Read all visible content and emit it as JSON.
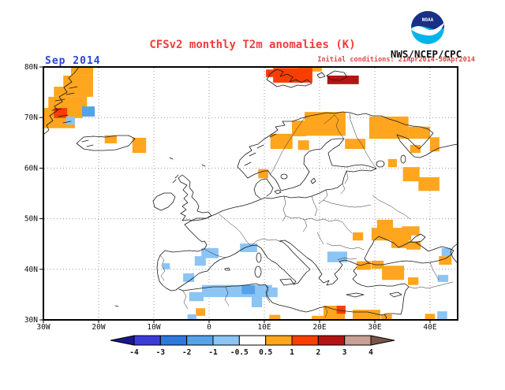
{
  "header": {
    "date_label": "Sep 2014",
    "title": "CFSv2 monthly T2m anomalies (K)",
    "init_conditions": "Initial conditions: 21Apr2014-30Apr2014",
    "agency": "NWS/NCEP/CPC",
    "logo_text": "NOAA"
  },
  "map": {
    "extent": {
      "lon_min": -30,
      "lon_max": 45,
      "lat_min": 30,
      "lat_max": 80
    },
    "lon_ticks": [
      {
        "label": "30W",
        "value": -30
      },
      {
        "label": "20W",
        "value": -20
      },
      {
        "label": "10W",
        "value": -10
      },
      {
        "label": "0",
        "value": 0
      },
      {
        "label": "10E",
        "value": 10
      },
      {
        "label": "20E",
        "value": 20
      },
      {
        "label": "30E",
        "value": 30
      },
      {
        "label": "40E",
        "value": 40
      }
    ],
    "lat_ticks": [
      {
        "label": "80N",
        "value": 80
      },
      {
        "label": "70N",
        "value": 70
      },
      {
        "label": "60N",
        "value": 60
      },
      {
        "label": "50N",
        "value": 50
      },
      {
        "label": "40N",
        "value": 40
      },
      {
        "label": "30N",
        "value": 30
      }
    ],
    "grid_lons": [
      -20,
      -10,
      0,
      10,
      20,
      30,
      40
    ],
    "grid_lats": [
      70,
      60,
      50,
      40
    ]
  },
  "legend_classes": {
    "m2": {
      "color": "#55a2e8",
      "range_k": "-2 to -1"
    },
    "m1": {
      "color": "#8cc4f4",
      "range_k": "-1 to -0.5"
    },
    "p1": {
      "color": "#ffa51e",
      "range_k": "0.5 to 1"
    },
    "p2": {
      "color": "#f83e00",
      "range_k": "1 to 2"
    },
    "p3": {
      "color": "#b41414",
      "range_k": "2 to 3"
    }
  },
  "colorbar": {
    "tick_labels": [
      "-4",
      "-3",
      "-2",
      "-1",
      "-0.5",
      "0.5",
      "1",
      "2",
      "3",
      "4"
    ],
    "segment_colors": [
      "#3c3cd8",
      "#2f78dc",
      "#55a2e8",
      "#8cc4f4",
      "#ffffff",
      "#ffa51e",
      "#f83e00",
      "#b41414",
      "#c8a096"
    ],
    "arrow_left_color": "#18188c",
    "arrow_right_color": "#7a5448"
  },
  "chart_data": {
    "type": "heatmap",
    "title": "CFSv2 monthly T2m anomalies (K)",
    "units": "K",
    "cells_format": [
      "lon_west",
      "lat_south",
      "lon_east",
      "lat_north",
      "anomaly_class"
    ],
    "cells": [
      [
        -25.0,
        78.3,
        -21.0,
        80.0,
        "p1"
      ],
      [
        -26.4,
        76.1,
        -21.0,
        78.3,
        "p1"
      ],
      [
        -28.1,
        74.1,
        -21.0,
        76.1,
        "p1"
      ],
      [
        -29.1,
        71.9,
        -22.1,
        74.1,
        "p1"
      ],
      [
        -30.0,
        69.9,
        -22.9,
        71.9,
        "p1"
      ],
      [
        -30.0,
        67.9,
        -24.3,
        69.9,
        "p1"
      ],
      [
        -28.1,
        69.9,
        -25.7,
        71.9,
        "p2"
      ],
      [
        -23.0,
        70.2,
        -20.7,
        72.2,
        "m2"
      ],
      [
        -25.9,
        68.6,
        -24.3,
        70.2,
        "m1"
      ],
      [
        -18.9,
        64.9,
        -16.7,
        66.5,
        "p1"
      ],
      [
        -13.9,
        63.0,
        -11.4,
        66.0,
        "p1"
      ],
      [
        16.1,
        79.1,
        20.4,
        80.0,
        "p1"
      ],
      [
        10.3,
        78.0,
        12.3,
        79.5,
        "p2"
      ],
      [
        11.6,
        76.9,
        18.7,
        79.8,
        "p2"
      ],
      [
        21.4,
        76.6,
        27.1,
        78.3,
        "p3"
      ],
      [
        17.3,
        66.4,
        24.7,
        71.1,
        "p1"
      ],
      [
        29.0,
        65.8,
        36.1,
        70.2,
        "p1"
      ],
      [
        36.1,
        65.8,
        40.0,
        68.2,
        "p1"
      ],
      [
        15.0,
        66.3,
        17.6,
        69.4,
        "p1"
      ],
      [
        11.1,
        63.8,
        15.1,
        66.8,
        "p1"
      ],
      [
        24.6,
        63.8,
        28.3,
        65.8,
        "p1"
      ],
      [
        16.1,
        63.6,
        18.1,
        65.5,
        "p1"
      ],
      [
        36.4,
        63.0,
        38.3,
        64.6,
        "p1"
      ],
      [
        40.0,
        63.3,
        41.7,
        66.1,
        "p1"
      ],
      [
        32.4,
        60.2,
        34.0,
        61.8,
        "p1"
      ],
      [
        35.1,
        57.4,
        38.1,
        60.2,
        "p1"
      ],
      [
        37.9,
        55.5,
        41.7,
        58.2,
        "p1"
      ],
      [
        8.9,
        58.0,
        10.7,
        59.8,
        "p1"
      ],
      [
        30.4,
        47.8,
        33.3,
        49.8,
        "p1"
      ],
      [
        29.4,
        45.7,
        36.6,
        48.2,
        "p1"
      ],
      [
        34.9,
        46.7,
        38.1,
        48.5,
        "p1"
      ],
      [
        33.0,
        44.2,
        36.1,
        46.2,
        "p1"
      ],
      [
        35.7,
        43.9,
        38.3,
        45.6,
        "p1"
      ],
      [
        26.0,
        45.7,
        27.9,
        47.3,
        "p1"
      ],
      [
        21.4,
        41.4,
        25.0,
        43.5,
        "m1"
      ],
      [
        26.7,
        39.9,
        29.3,
        41.6,
        "p1"
      ],
      [
        29.4,
        40.1,
        31.6,
        41.7,
        "p1"
      ],
      [
        31.3,
        37.9,
        35.3,
        40.7,
        "p1"
      ],
      [
        36.0,
        36.9,
        37.9,
        38.4,
        "p1"
      ],
      [
        41.6,
        40.9,
        43.9,
        42.6,
        "p1"
      ],
      [
        42.1,
        42.6,
        43.9,
        44.2,
        "m1"
      ],
      [
        41.4,
        37.5,
        43.3,
        38.9,
        "m1"
      ],
      [
        -1.4,
        42.2,
        1.7,
        44.2,
        "m1"
      ],
      [
        -2.6,
        40.7,
        -0.6,
        42.6,
        "m1"
      ],
      [
        -4.7,
        37.5,
        -2.7,
        39.2,
        "m1"
      ],
      [
        -8.4,
        40.0,
        -7.1,
        41.2,
        "m1"
      ],
      [
        5.6,
        43.4,
        8.7,
        45.1,
        "m1"
      ],
      [
        -1.3,
        34.5,
        11.4,
        36.9,
        "m1"
      ],
      [
        -3.6,
        33.7,
        -1.0,
        35.5,
        "m1"
      ],
      [
        5.9,
        35.1,
        8.3,
        36.9,
        "m2"
      ],
      [
        10.4,
        34.5,
        12.4,
        36.4,
        "m1"
      ],
      [
        7.7,
        32.5,
        9.6,
        34.8,
        "m1"
      ],
      [
        -2.4,
        30.8,
        -0.7,
        32.3,
        "p1"
      ],
      [
        -3.9,
        30.0,
        -2.3,
        31.1,
        "m1"
      ],
      [
        10.9,
        30.0,
        12.9,
        31.0,
        "p1"
      ],
      [
        18.6,
        30.0,
        21.1,
        30.8,
        "p1"
      ],
      [
        20.7,
        30.0,
        24.6,
        32.8,
        "p1"
      ],
      [
        23.1,
        31.2,
        24.7,
        32.8,
        "p2"
      ],
      [
        26.0,
        30.0,
        31.0,
        32.0,
        "p1"
      ],
      [
        31.1,
        30.0,
        33.1,
        31.1,
        "p1"
      ],
      [
        39.1,
        30.0,
        40.9,
        31.2,
        "p1"
      ],
      [
        41.3,
        30.0,
        43.1,
        31.7,
        "m1"
      ]
    ]
  }
}
